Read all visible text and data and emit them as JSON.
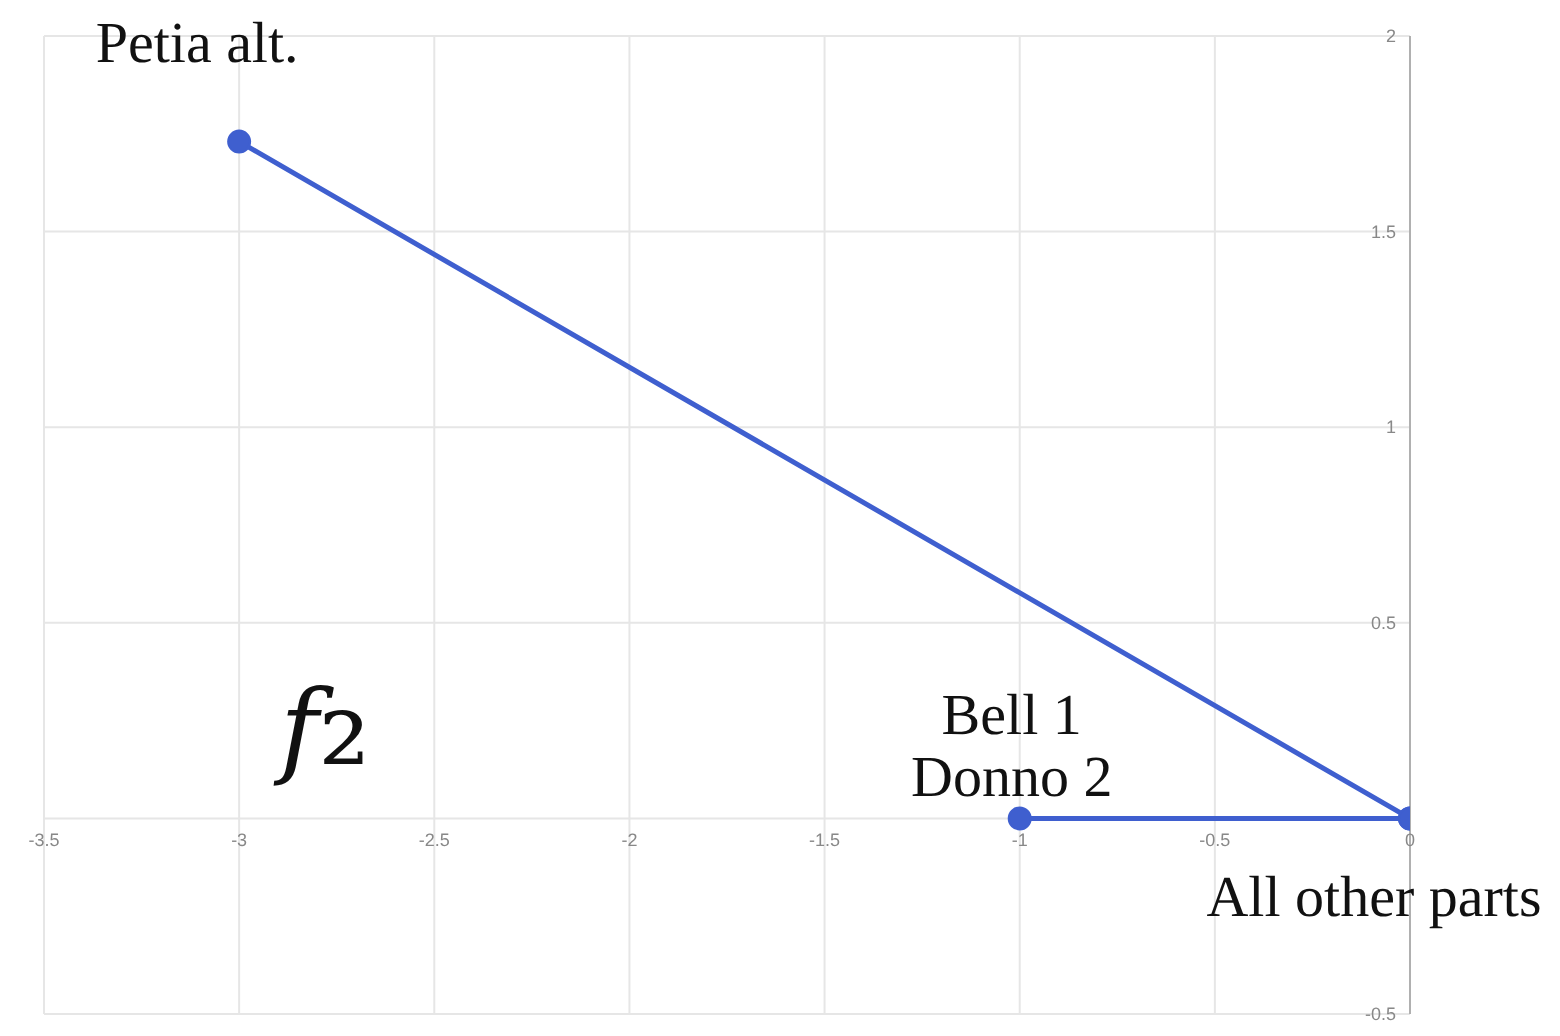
{
  "chart_data": {
    "type": "line",
    "series": [
      {
        "color": "#3f5fcf",
        "x": [
          -3,
          0
        ],
        "values": [
          1.73,
          0
        ]
      },
      {
        "color": "#3f5fcf",
        "x": [
          -1,
          0
        ],
        "values": [
          0,
          0
        ]
      }
    ],
    "xlim": [
      -3.5,
      0
    ],
    "ylim": [
      -0.5,
      2
    ],
    "xticks": [
      -3.5,
      -3,
      -2.5,
      -2,
      -1.5,
      -1,
      -0.5,
      0
    ],
    "yticks": [
      -0.5,
      {
        "value": 0,
        "label": null
      },
      0.5,
      1,
      1.5,
      2
    ],
    "grid": true,
    "marker": "circle",
    "line_style": "solid",
    "annotations": [
      {
        "text": "Petia alt.",
        "x": -3,
        "y": 1.73
      },
      {
        "text": "Bell 1\nDonno 2",
        "x": -1,
        "y": 0
      },
      {
        "text": "All other parts",
        "x": 0,
        "y": 0
      },
      "f₂"
    ]
  }
}
